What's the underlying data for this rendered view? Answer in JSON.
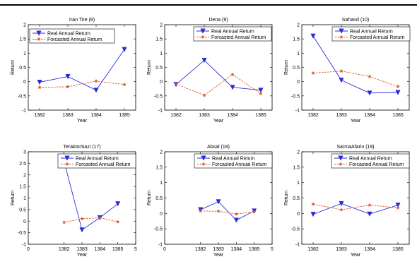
{
  "chart_data": [
    {
      "type": "line",
      "title": "Iran Tire (8)",
      "xlabel": "Year",
      "ylabel": "Return",
      "x": [
        1382,
        1383,
        1384,
        1385
      ],
      "xticks": [
        "1382",
        "1383",
        "1384",
        "1385"
      ],
      "xlim": [
        1381.6,
        1385.4
      ],
      "ylim": [
        -1,
        2
      ],
      "yticks": [
        "-1",
        "-0.5",
        "0",
        "0.5",
        "1",
        "1.5",
        "2"
      ],
      "legend_position": "top-left",
      "series": [
        {
          "name": "Real Annual Return",
          "values": [
            -0.02,
            0.18,
            -0.3,
            1.13
          ],
          "color": "#2b2bd6",
          "marker": "triangle-down"
        },
        {
          "name": "Forcasted Annual Return",
          "values": [
            -0.2,
            -0.18,
            0.02,
            -0.1
          ],
          "color": "#d9552b",
          "marker": "star"
        }
      ]
    },
    {
      "type": "line",
      "title": "Dena (9)",
      "xlabel": "Year",
      "ylabel": "Return",
      "x": [
        1382,
        1383,
        1384,
        1385
      ],
      "xticks": [
        "1382",
        "1383",
        "1384",
        "1385"
      ],
      "xlim": [
        1381.6,
        1385.4
      ],
      "ylim": [
        -1,
        2
      ],
      "yticks": [
        "-1",
        "-0.5",
        "0",
        "0.5",
        "1",
        "1.5",
        "2"
      ],
      "legend_position": "top-right",
      "series": [
        {
          "name": "Real Annual Return",
          "values": [
            -0.1,
            0.75,
            -0.2,
            -0.3
          ],
          "color": "#2b2bd6",
          "marker": "triangle-down"
        },
        {
          "name": "Forcasted Annual Return",
          "values": [
            -0.08,
            -0.48,
            0.25,
            -0.42
          ],
          "color": "#d9552b",
          "marker": "star"
        }
      ]
    },
    {
      "type": "line",
      "title": "Sahand (10)",
      "xlabel": "Year",
      "ylabel": "Return",
      "x": [
        1382,
        1383,
        1384,
        1385
      ],
      "xticks": [
        "1382",
        "1383",
        "1384",
        "1385"
      ],
      "xlim": [
        1381.6,
        1385.4
      ],
      "ylim": [
        -1,
        2
      ],
      "yticks": [
        "-1",
        "-0.5",
        "0",
        "0.5",
        "1",
        "1.5",
        "2"
      ],
      "legend_position": "top-right",
      "series": [
        {
          "name": "Real Annual Return",
          "values": [
            1.6,
            0.05,
            -0.4,
            -0.38
          ],
          "color": "#2b2bd6",
          "marker": "triangle-down"
        },
        {
          "name": "Forcasted Annual Return",
          "values": [
            0.3,
            0.37,
            0.18,
            -0.17
          ],
          "color": "#d9552b",
          "marker": "star"
        }
      ]
    },
    {
      "type": "line",
      "title": "TeraktorSazi (17)",
      "xlabel": "Year",
      "ylabel": "Return",
      "x": [
        1382,
        1383,
        1384,
        1385
      ],
      "xticks": [
        "0",
        "1382",
        "1383",
        "1384",
        "1385",
        "5"
      ],
      "xlim": [
        1380,
        1386
      ],
      "ylim": [
        -1,
        3
      ],
      "yticks": [
        "-1",
        "-0.5",
        "0",
        "0.5",
        "1",
        "1.5",
        "2",
        "2.5",
        "3"
      ],
      "legend_position": "top-right",
      "series": [
        {
          "name": "Real Annual Return",
          "values": [
            2.58,
            -0.38,
            0.15,
            0.75
          ],
          "color": "#2b2bd6",
          "marker": "triangle-down"
        },
        {
          "name": "Forcasted Annual Return",
          "values": [
            -0.05,
            0.1,
            0.15,
            -0.03
          ],
          "color": "#d9552b",
          "marker": "star"
        }
      ]
    },
    {
      "type": "line",
      "title": "Absal (18)",
      "xlabel": "Year",
      "ylabel": "Return",
      "x": [
        1382,
        1383,
        1384,
        1385
      ],
      "xticks": [
        "0",
        "1382",
        "1383",
        "1384",
        "1385",
        "5"
      ],
      "xlim": [
        1380,
        1386
      ],
      "ylim": [
        -1,
        2
      ],
      "yticks": [
        "-1",
        "-0.5",
        "0",
        "0.5",
        "1",
        "1.5",
        "2"
      ],
      "legend_position": "top-right",
      "series": [
        {
          "name": "Real Annual Return",
          "values": [
            0.12,
            0.38,
            -0.22,
            0.08
          ],
          "color": "#2b2bd6",
          "marker": "triangle-down"
        },
        {
          "name": "Forcasted Annual Return",
          "values": [
            0.08,
            0.07,
            -0.02,
            0.05
          ],
          "color": "#d9552b",
          "marker": "star"
        }
      ]
    },
    {
      "type": "line",
      "title": "SarmaAfarin (19)",
      "xlabel": "Year",
      "ylabel": "Return",
      "x": [
        1382,
        1383,
        1384,
        1385
      ],
      "xticks": [
        "1382",
        "1383",
        "1384",
        "1385"
      ],
      "xlim": [
        1381.6,
        1385.4
      ],
      "ylim": [
        -1,
        2
      ],
      "yticks": [
        "-1",
        "-0.5",
        "0",
        "0.5",
        "1",
        "1.5",
        "2"
      ],
      "legend_position": "top-right",
      "series": [
        {
          "name": "Real Annual Return",
          "values": [
            -0.03,
            0.32,
            -0.02,
            0.27
          ],
          "color": "#2b2bd6",
          "marker": "triangle-down"
        },
        {
          "name": "Forcasted Annual Return",
          "values": [
            0.3,
            0.12,
            0.27,
            0.18
          ],
          "color": "#d9552b",
          "marker": "star"
        }
      ]
    }
  ]
}
